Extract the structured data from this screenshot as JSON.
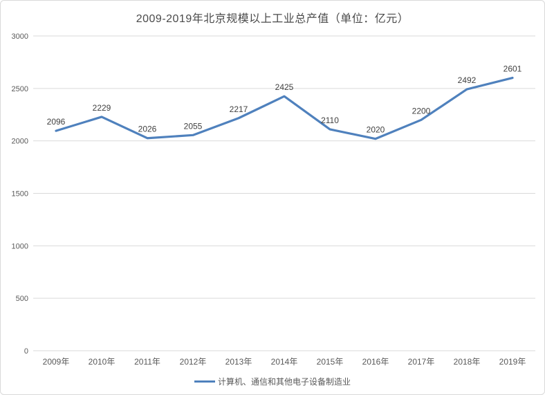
{
  "chart": {
    "title": "2009-2019年北京规模以上工业总产值（单位：亿元）",
    "legend_label": "计算机、通信和其他电子设备制造业"
  },
  "colors": {
    "line": "#4F81BD",
    "grid": "#D9D9D9",
    "axis_text": "#595959",
    "title_text": "#4A4A4A",
    "data_label_text": "#404040",
    "border": "#D9D9D9",
    "background": "#FFFFFF"
  },
  "chart_data": {
    "type": "line",
    "title": "2009-2019年北京规模以上工业总产值（单位：亿元）",
    "categories": [
      "2009年",
      "2010年",
      "2011年",
      "2012年",
      "2013年",
      "2014年",
      "2015年",
      "2016年",
      "2017年",
      "2018年",
      "2019年"
    ],
    "series": [
      {
        "name": "计算机、通信和其他电子设备制造业",
        "values": [
          2096,
          2229,
          2026,
          2055,
          2217,
          2425,
          2110,
          2020,
          2200,
          2492,
          2601
        ]
      }
    ],
    "xlabel": "",
    "ylabel": "",
    "ylim": [
      0,
      3000
    ],
    "yticks": [
      0,
      500,
      1000,
      1500,
      2000,
      2500,
      3000
    ],
    "grid": true,
    "data_labels": true,
    "legend_position": "bottom"
  }
}
